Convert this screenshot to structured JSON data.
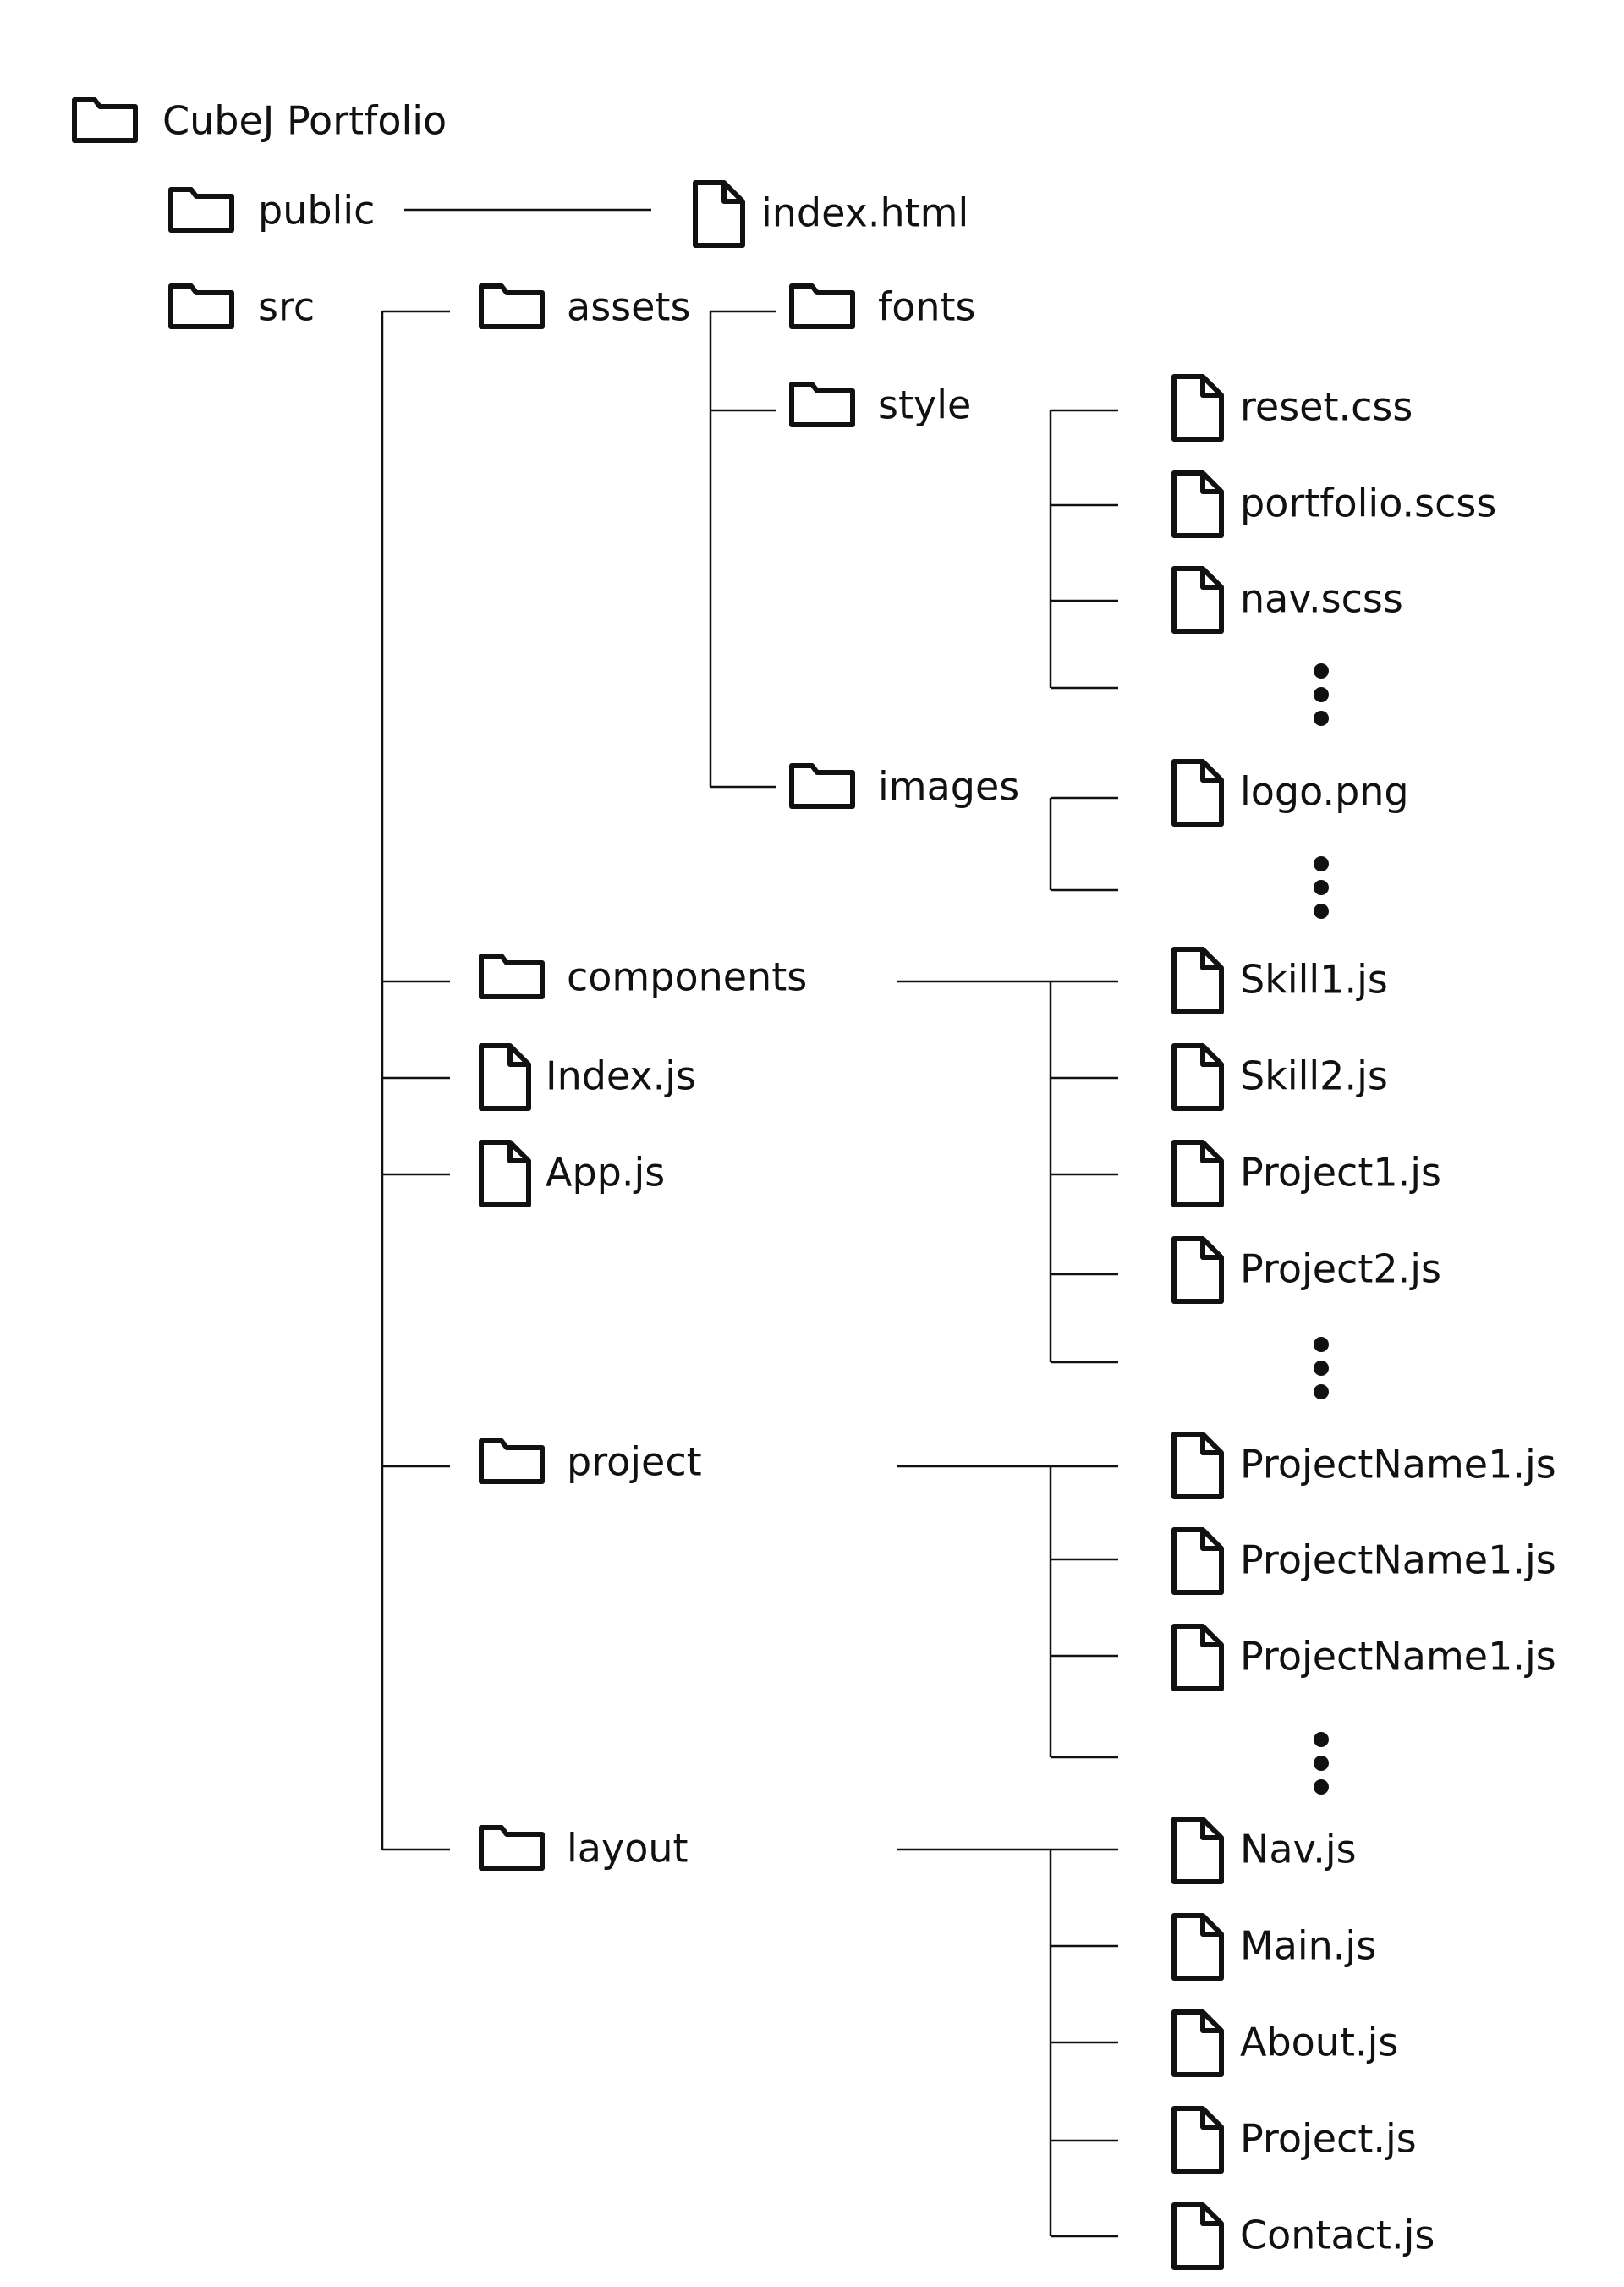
{
  "tree": {
    "root": "CubeJ Portfolio",
    "public": "public",
    "index_html": "index.html",
    "src": "src",
    "assets": "assets",
    "fonts": "fonts",
    "style": "style",
    "style_files": [
      "reset.css",
      "portfolio.scss",
      "nav.scss"
    ],
    "images": "images",
    "image_files": [
      "logo.png"
    ],
    "components": "components",
    "component_files": [
      "Skill1.js",
      "Skill2.js",
      "Project1.js",
      "Project2.js"
    ],
    "index_js": "Index.js",
    "app_js": "App.js",
    "project": "project",
    "project_files": [
      "ProjectName1.js",
      "ProjectName1.js",
      "ProjectName1.js"
    ],
    "layout": "layout",
    "layout_files": [
      "Nav.js",
      "Main.js",
      "About.js",
      "Project.js",
      "Contact.js"
    ]
  },
  "icons": {
    "folder": "folder-icon",
    "file": "file-icon",
    "more": "more-items-icon"
  },
  "colors": {
    "stroke": "#111111",
    "background": "#ffffff"
  }
}
